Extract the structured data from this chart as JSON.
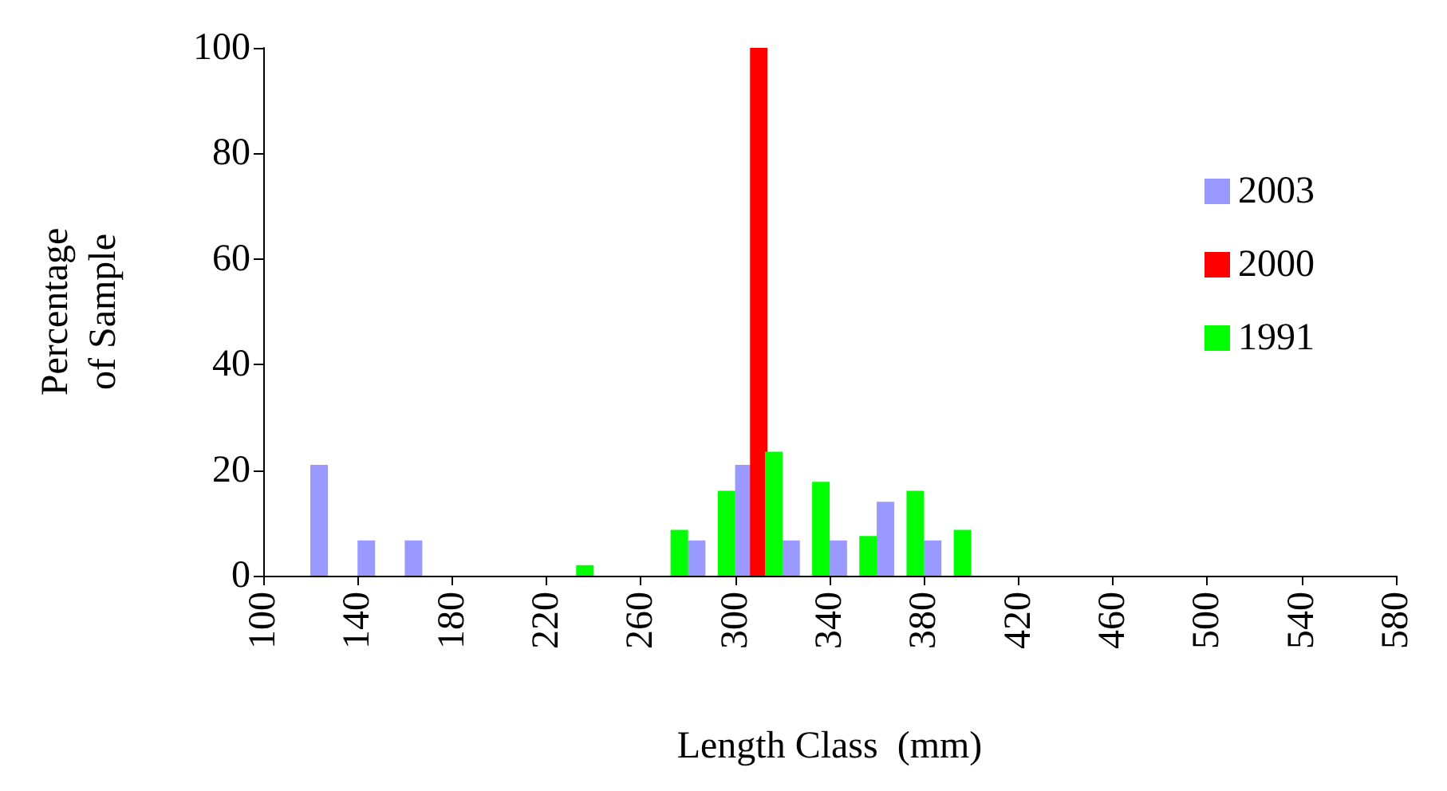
{
  "chart_data": {
    "type": "bar",
    "xlabel": "Length Class  (mm)",
    "ylabel": "Percentage\nof Sample",
    "xlim": [
      100,
      580
    ],
    "xticks": [
      100,
      140,
      180,
      220,
      260,
      300,
      340,
      380,
      420,
      460,
      500,
      540,
      580
    ],
    "ylim": [
      0,
      100
    ],
    "yticks": [
      0,
      20,
      40,
      60,
      80,
      100
    ],
    "grid": false,
    "legend": "top right",
    "series": [
      {
        "name": "2003",
        "color": "#9999ff",
        "x": [
          130,
          150,
          170,
          290,
          310,
          330,
          350,
          370,
          390
        ],
        "values": [
          21,
          6.7,
          6.7,
          6.7,
          21,
          6.7,
          6.7,
          14,
          6.7
        ]
      },
      {
        "name": "2000",
        "color": "#ff0000",
        "x": [
          310
        ],
        "values": [
          100
        ]
      },
      {
        "name": "1991",
        "color": "#00ff00",
        "x": [
          230,
          270,
          290,
          310,
          330,
          350,
          370,
          390
        ],
        "values": [
          2,
          8.7,
          16.1,
          23.5,
          17.8,
          7.5,
          16.1,
          8.7
        ]
      }
    ]
  }
}
